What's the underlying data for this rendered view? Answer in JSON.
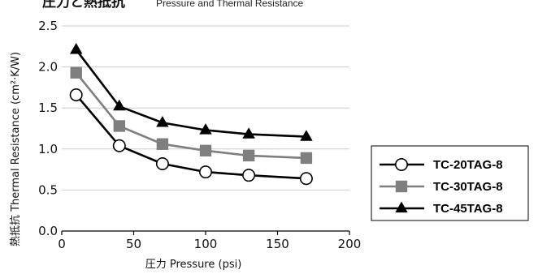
{
  "chart_data": {
    "type": "line",
    "title": "圧力と熱抵抗",
    "subtitle": "Pressure and Thermal Resistance",
    "xlabel": "圧力 Pressure (psi)",
    "ylabel": "熱抵抗 Thermal Resistance (cm²·K/W)",
    "xlim": [
      0,
      200
    ],
    "ylim": [
      0.0,
      2.5
    ],
    "x_ticks": [
      "0",
      "50",
      "100",
      "150",
      "200"
    ],
    "y_ticks": [
      "0.0",
      "0.5",
      "1.0",
      "1.5",
      "2.0",
      "2.5"
    ],
    "grid": "horizontal",
    "legend_position": "right",
    "x": [
      10,
      40,
      70,
      100,
      130,
      170
    ],
    "series": [
      {
        "name": "TC-20TAG-8",
        "values": [
          1.66,
          1.04,
          0.82,
          0.72,
          0.68,
          0.64
        ],
        "marker": "circle",
        "color": "#000000",
        "fill": "#ffffff"
      },
      {
        "name": "TC-30TAG-8",
        "values": [
          1.93,
          1.28,
          1.06,
          0.98,
          0.92,
          0.89
        ],
        "marker": "square",
        "color": "#7f7f7f",
        "fill": "#7f7f7f"
      },
      {
        "name": "TC-45TAG-8",
        "values": [
          2.21,
          1.52,
          1.32,
          1.23,
          1.18,
          1.15
        ],
        "marker": "triangle",
        "color": "#000000",
        "fill": "#000000"
      }
    ]
  }
}
